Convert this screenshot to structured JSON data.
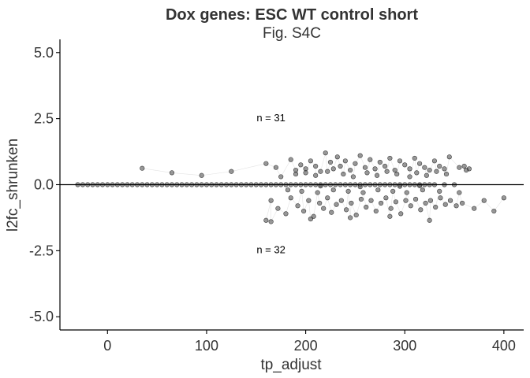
{
  "chart_data": {
    "type": "scatter",
    "title": "Dox genes: ESC WT control short",
    "subtitle": "Fig. S4C",
    "xlabel": "tp_adjust",
    "ylabel": "l2fc_shrunken",
    "xlim": [
      -48,
      420
    ],
    "ylim": [
      -5.5,
      5.5
    ],
    "xticks": [
      0,
      100,
      200,
      300,
      400
    ],
    "xtick_labels": [
      "0",
      "100",
      "200",
      "300",
      "400"
    ],
    "yticks": [
      -5.0,
      -2.5,
      0.0,
      2.5,
      5.0
    ],
    "ytick_labels": [
      "-5.0",
      "-2.5",
      "0.0",
      "2.5",
      "5.0"
    ],
    "hline": 0,
    "grid": false,
    "annotations": [
      {
        "text": "n = 31",
        "x": 165,
        "y": 2.4
      },
      {
        "text": "n = 32",
        "x": 165,
        "y": -2.6
      }
    ],
    "colors": {
      "point_fill": "#555555",
      "point_stroke": "#000000",
      "line": "#d9d9d9",
      "axis": "#000000"
    },
    "series": [
      {
        "x": [
          -30,
          -25,
          -20,
          -15,
          -10,
          -5,
          0,
          5,
          10,
          15,
          20,
          25,
          30,
          35,
          40,
          45,
          50,
          55,
          60,
          65,
          70,
          75,
          80,
          85,
          90,
          95,
          100,
          105,
          110,
          115,
          120,
          125,
          130,
          135,
          140,
          145,
          150,
          155,
          160,
          165,
          170,
          175,
          180,
          185,
          190,
          195,
          200,
          205,
          210,
          215,
          220,
          225,
          230,
          235,
          240,
          245,
          250,
          255,
          260,
          265,
          270,
          275,
          280,
          285,
          290,
          295,
          300,
          305,
          310,
          315,
          320,
          325,
          330,
          340,
          350,
          35,
          65,
          95,
          125,
          160,
          170,
          185,
          190,
          195,
          200,
          205,
          210,
          215,
          220,
          225,
          228,
          232,
          235,
          240,
          245,
          250,
          255,
          260,
          265,
          270,
          275,
          280,
          285,
          290,
          295,
          300,
          305,
          310,
          315,
          320,
          325,
          330,
          335,
          340,
          345,
          355,
          360,
          365,
          175,
          190,
          200,
          210,
          222,
          238,
          248,
          262,
          272,
          282,
          292,
          305,
          312,
          322,
          332,
          342,
          362,
          160,
          165,
          172,
          180,
          185,
          192,
          198,
          203,
          208,
          214,
          218,
          222,
          226,
          231,
          236,
          241,
          246,
          251,
          256,
          261,
          266,
          271,
          276,
          281,
          286,
          291,
          296,
          301,
          306,
          311,
          316,
          321,
          326,
          331,
          336,
          341,
          346,
          352,
          358,
          370,
          380,
          390,
          400,
          182,
          196,
          212,
          228,
          243,
          258,
          273,
          288,
          302,
          318,
          335,
          355,
          165,
          205,
          245,
          285,
          325,
          215,
          255,
          295,
          315
        ],
        "y": [
          0,
          0,
          0,
          0,
          0,
          0,
          0,
          0,
          0,
          0,
          0,
          0,
          0,
          0,
          0,
          0,
          0,
          0,
          0,
          0,
          0,
          0,
          0,
          0,
          0,
          0,
          0,
          0,
          0,
          0,
          0,
          0,
          0,
          0,
          0,
          0,
          0,
          0,
          0,
          0,
          0,
          0,
          0,
          0,
          0,
          0,
          0,
          0,
          0,
          0,
          0,
          0,
          0,
          0,
          0,
          0,
          0,
          0,
          0,
          0,
          0,
          0,
          0,
          0,
          0,
          0,
          0,
          0,
          0,
          0,
          0,
          0,
          0,
          0,
          0,
          0.62,
          0.45,
          0.35,
          0.5,
          0.8,
          0.65,
          0.95,
          0.55,
          0.75,
          0.6,
          0.9,
          0.7,
          0.5,
          1.2,
          0.85,
          0.6,
          1.05,
          0.7,
          0.9,
          0.55,
          0.8,
          1.1,
          0.65,
          0.95,
          0.6,
          0.85,
          0.7,
          1.0,
          0.55,
          0.9,
          0.75,
          0.6,
          1.0,
          0.8,
          0.65,
          0.55,
          0.9,
          0.7,
          0.6,
          1.05,
          0.65,
          0.7,
          0.6,
          0.3,
          0.4,
          0.45,
          0.35,
          0.5,
          0.4,
          0.3,
          0.45,
          0.35,
          0.5,
          0.4,
          0.3,
          0.45,
          0.35,
          0.5,
          0.4,
          0.55,
          -1.35,
          -0.6,
          -0.9,
          -1.1,
          -0.5,
          -0.8,
          -1.0,
          -0.6,
          -1.2,
          -0.7,
          -0.9,
          -0.5,
          -1.05,
          -0.75,
          -0.6,
          -0.95,
          -0.7,
          -1.15,
          -0.55,
          -0.85,
          -0.6,
          -1.0,
          -0.7,
          -0.5,
          -0.9,
          -0.65,
          -1.1,
          -0.6,
          -0.8,
          -0.55,
          -0.95,
          -0.7,
          -0.6,
          -0.85,
          -0.5,
          -0.75,
          -0.6,
          -0.8,
          -0.7,
          -0.9,
          -0.6,
          -1.0,
          -0.5,
          -0.2,
          -0.25,
          -0.3,
          -0.2,
          -0.25,
          -0.3,
          -0.2,
          -0.25,
          -0.3,
          -0.2,
          -0.25,
          -0.3,
          -1.4,
          -1.3,
          -1.25,
          -1.2,
          -1.35,
          -0.05,
          -0.08,
          -0.06,
          -0.04
        ]
      }
    ]
  }
}
